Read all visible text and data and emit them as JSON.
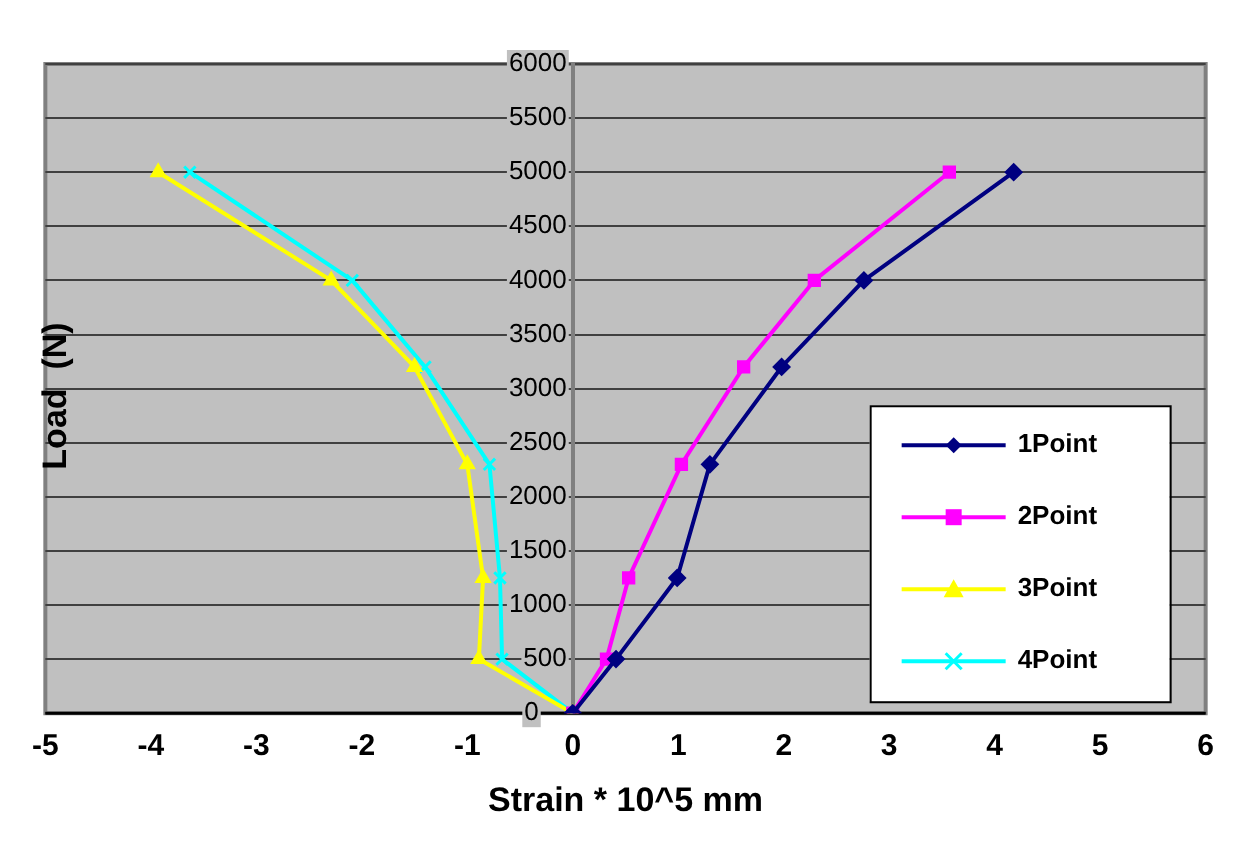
{
  "chart_data": {
    "type": "line",
    "xlabel": "Strain * 10^5 mm",
    "ylabel": "Load  (N)",
    "xlim": [
      -5,
      6
    ],
    "xticks": [
      -5,
      -4,
      -3,
      -2,
      -1,
      0,
      1,
      2,
      3,
      4,
      5,
      6
    ],
    "ylim": [
      0,
      6000
    ],
    "yticks": [
      0,
      500,
      1000,
      1500,
      2000,
      2500,
      3000,
      3500,
      4000,
      4500,
      5000,
      5500,
      6000
    ],
    "grid": "y",
    "legend": "bottom right",
    "line_style": "solid",
    "series": [
      {
        "name": "1Point",
        "color": "#000080",
        "marker": "diamond",
        "x": [
          0,
          0.41,
          0.99,
          1.3,
          1.98,
          2.76,
          4.18
        ],
        "values": [
          0,
          500,
          1250,
          2300,
          3200,
          4000,
          5000
        ]
      },
      {
        "name": "2Point",
        "color": "#ff00ff",
        "marker": "square",
        "x": [
          0,
          0.32,
          0.53,
          1.03,
          1.62,
          2.29,
          3.57
        ],
        "values": [
          0,
          500,
          1250,
          2300,
          3200,
          4000,
          5000
        ]
      },
      {
        "name": "3Point",
        "color": "#ffff00",
        "marker": "triangle",
        "x": [
          0,
          -0.89,
          -0.85,
          -1,
          -1.5,
          -2.29,
          -3.93
        ],
        "values": [
          0,
          500,
          1250,
          2300,
          3200,
          4000,
          5000
        ]
      },
      {
        "name": "4Point",
        "color": "#00ffff",
        "marker": "cross",
        "x": [
          0,
          -0.67,
          -0.69,
          -0.79,
          -1.4,
          -2.09,
          -3.63
        ],
        "values": [
          0,
          500,
          1250,
          2300,
          3200,
          4000,
          5000
        ]
      }
    ]
  }
}
